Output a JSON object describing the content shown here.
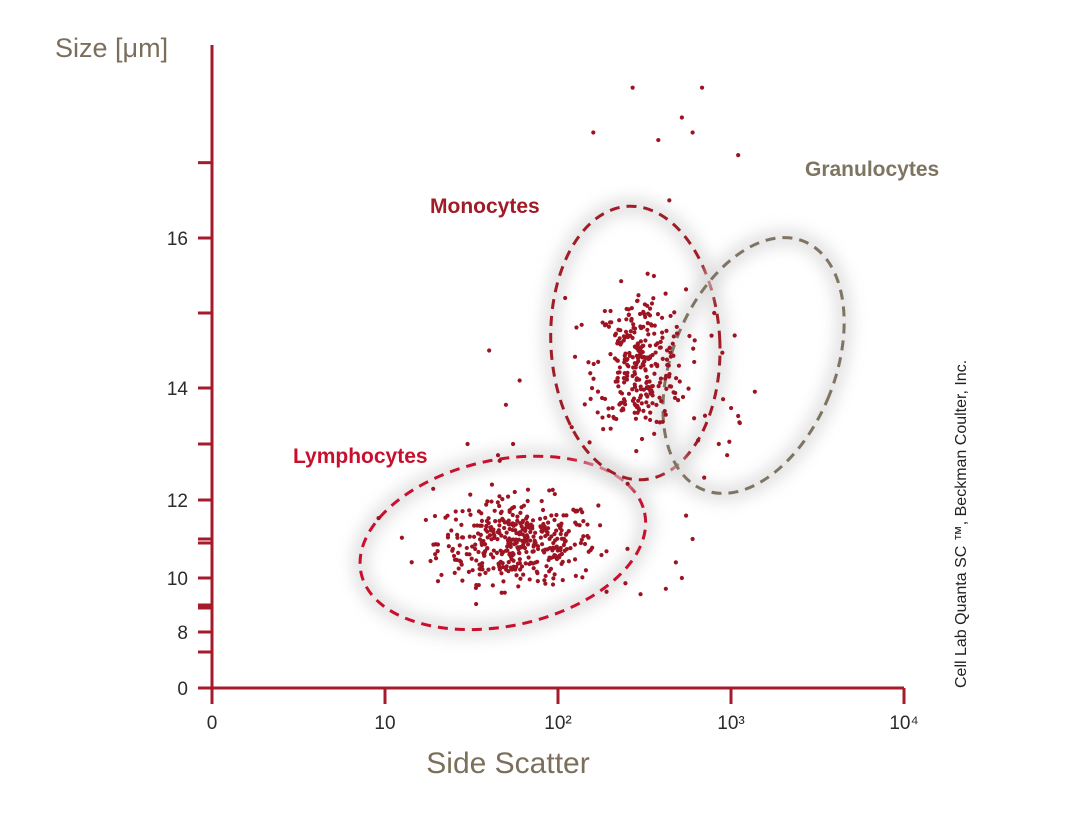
{
  "colors": {
    "axis": "#a51b2b",
    "axis_title": "#7b6f5c",
    "tick_label": "#2b2b2b",
    "lymphocytes": "#c8102e",
    "monocytes": "#a01c26",
    "granulocytes": "#7e7462",
    "dot": "#9c1422",
    "background": "#ffffff"
  },
  "chart_data": {
    "type": "scatter",
    "xlabel": "Side Scatter",
    "ylabel": "Size [μm]",
    "x_scale": "log",
    "xlim": [
      1,
      10000
    ],
    "ylim": [
      0,
      17.5
    ],
    "x_ticks": [
      {
        "value": 1,
        "label": "0"
      },
      {
        "value": 10,
        "label": "10"
      },
      {
        "value": 100,
        "label": "10²"
      },
      {
        "value": 1000,
        "label": "10³"
      },
      {
        "value": 10000,
        "label": "10⁴"
      }
    ],
    "y_ticks": [
      {
        "value": 0,
        "label": "0"
      },
      {
        "value": 8,
        "label": "8"
      },
      {
        "value": 10,
        "label": "10"
      },
      {
        "value": 12,
        "label": "12"
      },
      {
        "value": 14,
        "label": "14"
      },
      {
        "value": 16,
        "label": "16"
      }
    ],
    "grid": false,
    "credit": "Cell Lab Quanta SC ™, Beckman Coulter, Inc.",
    "series": [
      {
        "name": "Lymphocytes",
        "label": "Lymphocytes",
        "color_key": "lymphocytes",
        "gate": {
          "x_center": 48,
          "y_center": 10.9,
          "x_extent": [
            9.5,
            450
          ],
          "y_extent": [
            8.6,
            12.9
          ],
          "tilt_deg": -12
        },
        "cloud": {
          "x_center": 58,
          "y_center": 10.9,
          "x_spread": 0.23,
          "y_spread": 0.55,
          "count": 420
        }
      },
      {
        "name": "Monocytes",
        "label": "Monocytes",
        "color_key": "monocytes",
        "gate": {
          "x_center": 280,
          "y_center": 14.6,
          "x_extent": [
            95,
            900
          ],
          "y_extent": [
            13.0,
            16.9
          ],
          "tilt_deg": -3
        },
        "cloud": {
          "x_center": 300,
          "y_center": 14.3,
          "x_spread": 0.13,
          "y_spread": 0.5,
          "count": 300
        }
      },
      {
        "name": "Granulocytes",
        "label": "Granulocytes",
        "color_key": "granulocytes",
        "gate": {
          "x_center": 1350,
          "y_center": 14.3,
          "x_extent": [
            470,
            4100
          ],
          "y_extent": [
            12.7,
            16.6
          ],
          "tilt_deg": 22
        },
        "cloud": {
          "x_center": 900,
          "y_center": 14.2,
          "x_spread": 0.1,
          "y_spread": 0.6,
          "count": 8
        }
      }
    ],
    "outliers": [
      [
        19,
        12.2
      ],
      [
        30,
        13.0
      ],
      [
        45,
        12.8
      ],
      [
        55,
        13.0
      ],
      [
        50,
        13.7
      ],
      [
        60,
        14.1
      ],
      [
        40,
        14.5
      ],
      [
        120,
        13.3
      ],
      [
        110,
        15.2
      ],
      [
        160,
        17.4
      ],
      [
        270,
        18.0
      ],
      [
        380,
        17.3
      ],
      [
        440,
        16.5
      ],
      [
        520,
        17.6
      ],
      [
        600,
        17.4
      ],
      [
        680,
        18.0
      ],
      [
        1100,
        17.1
      ],
      [
        800,
        15.0
      ],
      [
        1050,
        14.7
      ],
      [
        900,
        13.8
      ],
      [
        1100,
        13.5
      ],
      [
        950,
        12.8
      ],
      [
        700,
        12.4
      ],
      [
        550,
        11.6
      ],
      [
        480,
        10.4
      ],
      [
        420,
        9.6
      ],
      [
        300,
        9.4
      ],
      [
        600,
        11.0
      ],
      [
        520,
        10.0
      ],
      [
        850,
        13.0
      ]
    ]
  }
}
